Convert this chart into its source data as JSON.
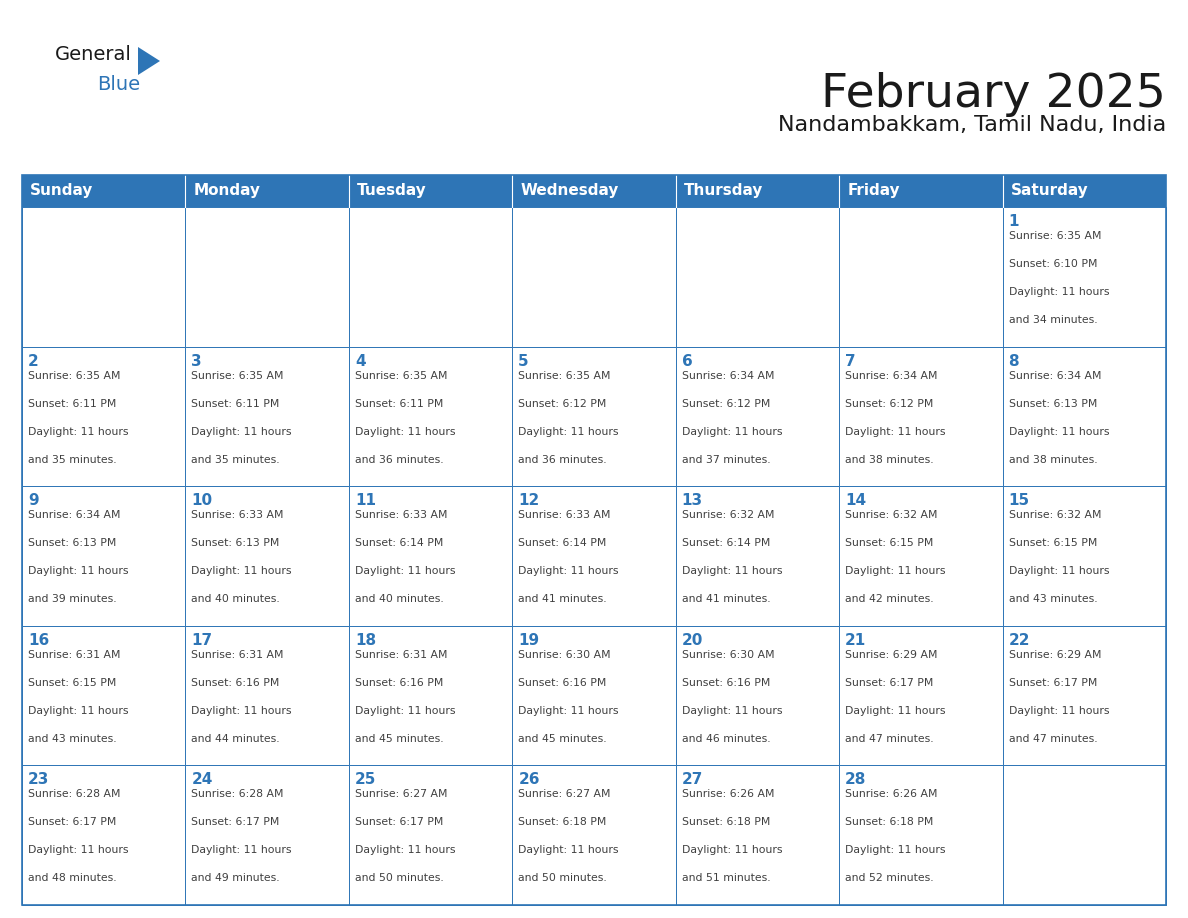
{
  "title": "February 2025",
  "subtitle": "Nandambakkam, Tamil Nadu, India",
  "header_bg": "#2E75B6",
  "header_text_color": "#FFFFFF",
  "cell_bg": "#FFFFFF",
  "cell_border_color": "#2E75B6",
  "day_number_color": "#2E75B6",
  "info_text_color": "#404040",
  "days_of_week": [
    "Sunday",
    "Monday",
    "Tuesday",
    "Wednesday",
    "Thursday",
    "Friday",
    "Saturday"
  ],
  "calendar_data": [
    [
      null,
      null,
      null,
      null,
      null,
      null,
      {
        "day": 1,
        "sunrise": "6:35 AM",
        "sunset": "6:10 PM",
        "daylight": "11 hours and 34 minutes."
      }
    ],
    [
      {
        "day": 2,
        "sunrise": "6:35 AM",
        "sunset": "6:11 PM",
        "daylight": "11 hours and 35 minutes."
      },
      {
        "day": 3,
        "sunrise": "6:35 AM",
        "sunset": "6:11 PM",
        "daylight": "11 hours and 35 minutes."
      },
      {
        "day": 4,
        "sunrise": "6:35 AM",
        "sunset": "6:11 PM",
        "daylight": "11 hours and 36 minutes."
      },
      {
        "day": 5,
        "sunrise": "6:35 AM",
        "sunset": "6:12 PM",
        "daylight": "11 hours and 36 minutes."
      },
      {
        "day": 6,
        "sunrise": "6:34 AM",
        "sunset": "6:12 PM",
        "daylight": "11 hours and 37 minutes."
      },
      {
        "day": 7,
        "sunrise": "6:34 AM",
        "sunset": "6:12 PM",
        "daylight": "11 hours and 38 minutes."
      },
      {
        "day": 8,
        "sunrise": "6:34 AM",
        "sunset": "6:13 PM",
        "daylight": "11 hours and 38 minutes."
      }
    ],
    [
      {
        "day": 9,
        "sunrise": "6:34 AM",
        "sunset": "6:13 PM",
        "daylight": "11 hours and 39 minutes."
      },
      {
        "day": 10,
        "sunrise": "6:33 AM",
        "sunset": "6:13 PM",
        "daylight": "11 hours and 40 minutes."
      },
      {
        "day": 11,
        "sunrise": "6:33 AM",
        "sunset": "6:14 PM",
        "daylight": "11 hours and 40 minutes."
      },
      {
        "day": 12,
        "sunrise": "6:33 AM",
        "sunset": "6:14 PM",
        "daylight": "11 hours and 41 minutes."
      },
      {
        "day": 13,
        "sunrise": "6:32 AM",
        "sunset": "6:14 PM",
        "daylight": "11 hours and 41 minutes."
      },
      {
        "day": 14,
        "sunrise": "6:32 AM",
        "sunset": "6:15 PM",
        "daylight": "11 hours and 42 minutes."
      },
      {
        "day": 15,
        "sunrise": "6:32 AM",
        "sunset": "6:15 PM",
        "daylight": "11 hours and 43 minutes."
      }
    ],
    [
      {
        "day": 16,
        "sunrise": "6:31 AM",
        "sunset": "6:15 PM",
        "daylight": "11 hours and 43 minutes."
      },
      {
        "day": 17,
        "sunrise": "6:31 AM",
        "sunset": "6:16 PM",
        "daylight": "11 hours and 44 minutes."
      },
      {
        "day": 18,
        "sunrise": "6:31 AM",
        "sunset": "6:16 PM",
        "daylight": "11 hours and 45 minutes."
      },
      {
        "day": 19,
        "sunrise": "6:30 AM",
        "sunset": "6:16 PM",
        "daylight": "11 hours and 45 minutes."
      },
      {
        "day": 20,
        "sunrise": "6:30 AM",
        "sunset": "6:16 PM",
        "daylight": "11 hours and 46 minutes."
      },
      {
        "day": 21,
        "sunrise": "6:29 AM",
        "sunset": "6:17 PM",
        "daylight": "11 hours and 47 minutes."
      },
      {
        "day": 22,
        "sunrise": "6:29 AM",
        "sunset": "6:17 PM",
        "daylight": "11 hours and 47 minutes."
      }
    ],
    [
      {
        "day": 23,
        "sunrise": "6:28 AM",
        "sunset": "6:17 PM",
        "daylight": "11 hours and 48 minutes."
      },
      {
        "day": 24,
        "sunrise": "6:28 AM",
        "sunset": "6:17 PM",
        "daylight": "11 hours and 49 minutes."
      },
      {
        "day": 25,
        "sunrise": "6:27 AM",
        "sunset": "6:17 PM",
        "daylight": "11 hours and 50 minutes."
      },
      {
        "day": 26,
        "sunrise": "6:27 AM",
        "sunset": "6:18 PM",
        "daylight": "11 hours and 50 minutes."
      },
      {
        "day": 27,
        "sunrise": "6:26 AM",
        "sunset": "6:18 PM",
        "daylight": "11 hours and 51 minutes."
      },
      {
        "day": 28,
        "sunrise": "6:26 AM",
        "sunset": "6:18 PM",
        "daylight": "11 hours and 52 minutes."
      },
      null
    ]
  ],
  "logo_general_color": "#1a1a1a",
  "logo_blue_color": "#2E75B6",
  "title_fontsize": 34,
  "subtitle_fontsize": 16,
  "dow_fontsize": 11,
  "day_num_fontsize": 11,
  "info_fontsize": 7.8
}
